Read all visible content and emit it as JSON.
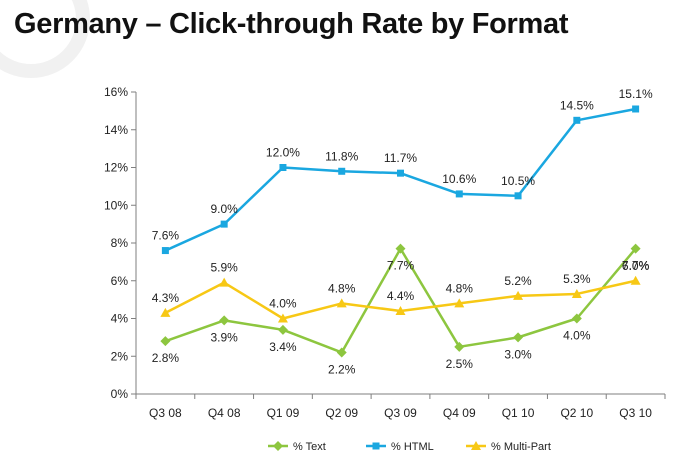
{
  "title": "Germany – Click-through Rate by Format",
  "chart_data": {
    "type": "line",
    "title": "Germany – Click-through Rate by Format",
    "xlabel": "",
    "ylabel": "",
    "categories": [
      "Q3 08",
      "Q4 08",
      "Q1 09",
      "Q2 09",
      "Q3 09",
      "Q4 09",
      "Q1 10",
      "Q2 10",
      "Q3 10"
    ],
    "ylim": [
      0,
      16
    ],
    "yticks": [
      0,
      2,
      4,
      6,
      8,
      10,
      12,
      14,
      16
    ],
    "ytick_labels": [
      "0%",
      "2%",
      "4%",
      "6%",
      "8%",
      "10%",
      "12%",
      "14%",
      "16%"
    ],
    "grid": false,
    "legend_position": "bottom",
    "series": [
      {
        "name": "% Text",
        "color": "#8dc63f",
        "marker": "diamond",
        "values": [
          2.8,
          3.9,
          3.4,
          2.2,
          7.7,
          2.5,
          3.0,
          4.0,
          7.7
        ],
        "labels": [
          "2.8%",
          "3.9%",
          "3.4%",
          "2.2%",
          "7.7%",
          "2.5%",
          "3.0%",
          "4.0%",
          "7.7%"
        ]
      },
      {
        "name": "% HTML",
        "color": "#1aa7e0",
        "marker": "square",
        "values": [
          7.6,
          9.0,
          12.0,
          11.8,
          11.7,
          10.6,
          10.5,
          14.5,
          15.1
        ],
        "labels": [
          "7.6%",
          "9.0%",
          "12.0%",
          "11.8%",
          "11.7%",
          "10.6%",
          "10.5%",
          "14.5%",
          "15.1%"
        ]
      },
      {
        "name": "% Multi-Part",
        "color": "#f7c815",
        "marker": "triangle",
        "values": [
          4.3,
          5.9,
          4.0,
          4.8,
          4.4,
          4.8,
          5.2,
          5.3,
          6.0
        ],
        "labels": [
          "4.3%",
          "5.9%",
          "4.0%",
          "4.8%",
          "4.4%",
          "4.8%",
          "5.2%",
          "5.3%",
          "6.0%"
        ]
      }
    ]
  }
}
